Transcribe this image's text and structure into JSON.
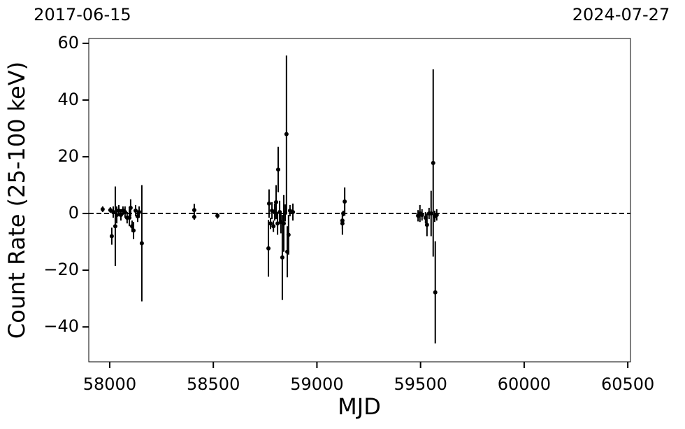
{
  "chart_data": {
    "type": "errorbar",
    "xlabel": "MJD",
    "ylabel": "Count Rate (25-100 keV)",
    "top_labels": [
      {
        "value": 57919,
        "label": "2017-06-15"
      },
      {
        "value": 60518,
        "label": "2024-07-27"
      }
    ],
    "xlim": [
      57899,
      60513
    ],
    "ylim": [
      -52.3,
      61.7
    ],
    "xticks": [
      58000,
      58500,
      59000,
      59500,
      60000,
      60500
    ],
    "yticks": [
      {
        "value": -40,
        "label": "−40"
      },
      {
        "value": -20,
        "label": "−20"
      },
      0,
      20,
      40,
      60
    ],
    "hline": 0,
    "color": "#000000",
    "x": [
      57966,
      58003,
      58010,
      58017,
      58027,
      58034,
      58044,
      58054,
      58064,
      58074,
      58084,
      58095,
      58101,
      58108,
      58115,
      58125,
      58135,
      58142,
      58155,
      58408,
      58408,
      58520,
      58766,
      58769,
      58776,
      58783,
      58790,
      58796,
      58803,
      58810,
      58813,
      58820,
      58826,
      58833,
      58840,
      58847,
      58853,
      58857,
      58863,
      58870,
      58884,
      59123,
      59123,
      59127,
      59134,
      59488,
      59497,
      59507,
      59524,
      59531,
      59541,
      59551,
      59561,
      59568,
      59571,
      59578
    ],
    "values": [
      1.5,
      1.2,
      -8,
      0.5,
      -4.5,
      -0.5,
      1,
      -0.5,
      1,
      0.5,
      -1.5,
      -1.5,
      2,
      -4.5,
      -6,
      1,
      -1,
      0.5,
      -10.5,
      1.2,
      -1.2,
      -0.8,
      -12.3,
      3.5,
      -3.5,
      1,
      -4.5,
      0.5,
      4,
      -3.5,
      15.5,
      0.5,
      -3,
      -15.5,
      -3.5,
      0.2,
      28,
      -13.5,
      -7.5,
      1,
      0.5,
      -2.5,
      -3.5,
      0,
      4.2,
      -0.8,
      0,
      -0.5,
      -1.5,
      -4,
      0,
      0,
      17.8,
      -1,
      -27.8,
      -0.5
    ],
    "errors": [
      1,
      1,
      3,
      2,
      14,
      3,
      2,
      2,
      1.5,
      2,
      2,
      3,
      3,
      2,
      3,
      2,
      2,
      2,
      20.5,
      2.2,
      1,
      1,
      10,
      5,
      2,
      3,
      2,
      3,
      6,
      4,
      8,
      4,
      4,
      15,
      10,
      3,
      27.7,
      9,
      7,
      2,
      3,
      3,
      4,
      1,
      5,
      2,
      3,
      2,
      2,
      4,
      2,
      8,
      33,
      2,
      18,
      2
    ]
  }
}
